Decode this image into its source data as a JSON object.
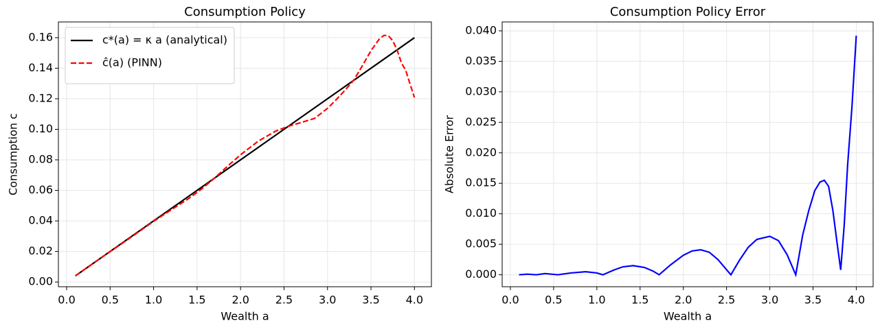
{
  "chart_data": [
    {
      "type": "line",
      "title": "Consumption Policy",
      "xlabel": "Wealth a",
      "ylabel": "Consumption c",
      "xlim": [
        -0.095,
        4.195
      ],
      "ylim": [
        -0.0031,
        0.1703
      ],
      "xticks": [
        {
          "value": 0,
          "label": "0.0"
        },
        0.5,
        {
          "value": 1,
          "label": "1.0"
        },
        1.5,
        {
          "value": 2,
          "label": "2.0"
        },
        2.5,
        {
          "value": 3,
          "label": "3.0"
        },
        3.5,
        {
          "value": 4,
          "label": "4.0"
        }
      ],
      "yticks": [
        {
          "value": 0,
          "label": "0.00"
        },
        0.02,
        0.04,
        0.06,
        0.08,
        {
          "value": 0.1,
          "label": "0.10"
        },
        0.12,
        0.14,
        0.16
      ],
      "grid": true,
      "legend": "upper left",
      "series": [
        {
          "name": "c*(a) = κ a (analytical)",
          "color": "#000000",
          "dash": "solid",
          "x": [
            0.1,
            4.0
          ],
          "values": [
            0.004,
            0.16
          ]
        },
        {
          "name": "ĉ(a) (PINN)",
          "color": "#ff0000",
          "dash": "dashed",
          "x": [
            0.1,
            0.3,
            0.5,
            0.7,
            1.0,
            1.2,
            1.4,
            1.55,
            1.7,
            1.85,
            2.0,
            2.2,
            2.4,
            2.55,
            2.7,
            2.85,
            3.0,
            3.1,
            3.2,
            3.3,
            3.4,
            3.5,
            3.6,
            3.65,
            3.7,
            3.75,
            3.8,
            3.85,
            3.9,
            3.95,
            4.0
          ],
          "values": [
            0.004,
            0.012,
            0.0199,
            0.0277,
            0.0397,
            0.0472,
            0.0545,
            0.0608,
            0.068,
            0.0758,
            0.0833,
            0.0921,
            0.0987,
            0.102,
            0.1045,
            0.1071,
            0.1137,
            0.1194,
            0.1255,
            0.132,
            0.1415,
            0.1515,
            0.1595,
            0.1615,
            0.1613,
            0.158,
            0.152,
            0.1435,
            0.1385,
            0.1295,
            0.1208
          ]
        }
      ]
    },
    {
      "type": "line",
      "title": "Consumption Policy Error",
      "xlabel": "Wealth a",
      "ylabel": "Absolute Error",
      "xlim": [
        -0.095,
        4.195
      ],
      "ylim": [
        -0.00196,
        0.04146
      ],
      "xticks": [
        {
          "value": 0,
          "label": "0.0"
        },
        0.5,
        {
          "value": 1,
          "label": "1.0"
        },
        1.5,
        {
          "value": 2,
          "label": "2.0"
        },
        2.5,
        {
          "value": 3,
          "label": "3.0"
        },
        3.5,
        {
          "value": 4,
          "label": "4.0"
        }
      ],
      "yticks": [
        {
          "value": 0,
          "label": "0.000"
        },
        {
          "value": 0.005,
          "label": "0.005"
        },
        {
          "value": 0.01,
          "label": "0.010"
        },
        {
          "value": 0.015,
          "label": "0.015"
        },
        {
          "value": 0.02,
          "label": "0.020"
        },
        {
          "value": 0.025,
          "label": "0.025"
        },
        {
          "value": 0.03,
          "label": "0.030"
        },
        {
          "value": 0.035,
          "label": "0.035"
        },
        {
          "value": 0.04,
          "label": "0.040"
        }
      ],
      "grid": true,
      "series": [
        {
          "name": null,
          "color": "#0000ff",
          "dash": "solid",
          "x": [
            0.1,
            0.2,
            0.3,
            0.4,
            0.55,
            0.7,
            0.87,
            1.0,
            1.07,
            1.2,
            1.3,
            1.42,
            1.55,
            1.65,
            1.72,
            1.85,
            2.0,
            2.1,
            2.2,
            2.3,
            2.4,
            2.55,
            2.65,
            2.75,
            2.85,
            3.0,
            3.1,
            3.2,
            3.3,
            3.38,
            3.45,
            3.52,
            3.58,
            3.63,
            3.68,
            3.73,
            3.78,
            3.82,
            3.86,
            3.9,
            3.95,
            4.0
          ],
          "values": [
            0.0,
            0.0001,
            0.0,
            0.0002,
            0.0,
            0.0003,
            0.0005,
            0.0003,
            0.0,
            0.0008,
            0.0013,
            0.0015,
            0.0012,
            0.0006,
            0.0,
            0.0016,
            0.0032,
            0.0039,
            0.0041,
            0.0037,
            0.0025,
            0.0,
            0.0024,
            0.0045,
            0.0058,
            0.0063,
            0.0056,
            0.0033,
            0.0,
            0.0065,
            0.0105,
            0.0138,
            0.0152,
            0.0155,
            0.0145,
            0.0105,
            0.005,
            0.0008,
            0.008,
            0.018,
            0.0275,
            0.0392
          ]
        }
      ]
    }
  ]
}
